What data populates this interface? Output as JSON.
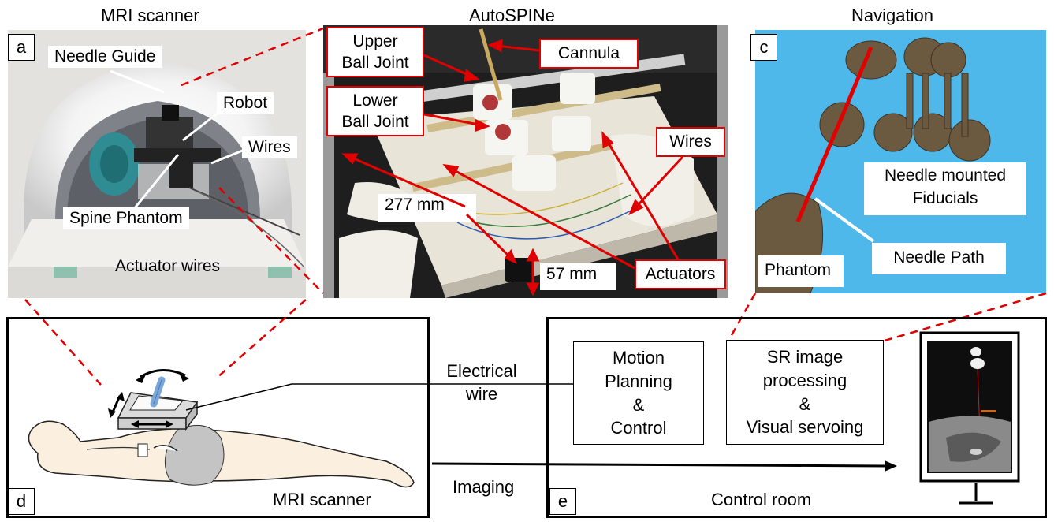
{
  "titles": {
    "mri_scanner": "MRI scanner",
    "autospine": "AutoSPINe",
    "navigation": "Navigation"
  },
  "panels": {
    "a": "a",
    "c": "c",
    "d": "d",
    "e": "e"
  },
  "panel_a": {
    "needle_guide": "Needle Guide",
    "robot": "Robot",
    "wires": "Wires",
    "spine_phantom": "Spine Phantom",
    "actuator_wires": "Actuator wires"
  },
  "panel_b": {
    "upper_ball_joint": "Upper\nBall Joint",
    "lower_ball_joint": "Lower\nBall Joint",
    "cannula": "Cannula",
    "wires": "Wires",
    "actuators": "Actuators",
    "dim_277": "277 mm",
    "dim_57": "57 mm"
  },
  "panel_c": {
    "fiducials": "Needle mounted\nFiducials",
    "needle_path": "Needle Path",
    "phantom": "Phantom"
  },
  "panel_d": {
    "label": "MRI scanner"
  },
  "connections": {
    "electrical_wire": "Electrical\nwire",
    "imaging": "Imaging"
  },
  "panel_e": {
    "motion_planning": "Motion\nPlanning\n&\nControl",
    "sr_image": "SR image\nprocessing\n&\nVisual servoing",
    "label": "Control room"
  },
  "colors": {
    "accent_red": "#e00000",
    "sky_blue": "#4fb8ea"
  }
}
